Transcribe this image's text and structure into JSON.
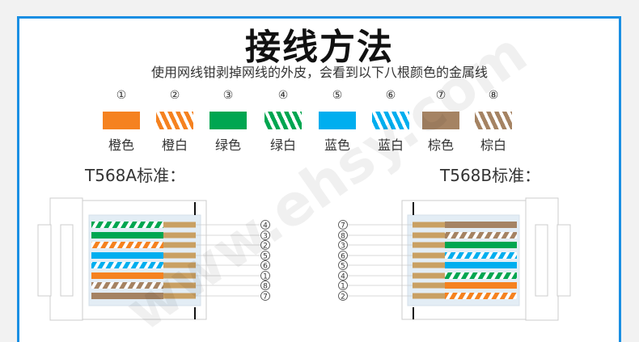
{
  "title": "接线方法",
  "subtitle": "使用网线钳剥掉网线的外皮，会看到以下八根颜色的金属线",
  "watermark": "www.ehsy.com",
  "colors": {
    "orange": "#f58220",
    "green": "#00a651",
    "blue": "#00aeef",
    "brown": "#a58363",
    "contact": "#c9a063",
    "frame": "#1a8fe3"
  },
  "legend": [
    {
      "num": "①",
      "label": "橙色",
      "color": "orange",
      "striped": false
    },
    {
      "num": "②",
      "label": "橙白",
      "color": "orange",
      "striped": true
    },
    {
      "num": "③",
      "label": "绿色",
      "color": "green",
      "striped": false
    },
    {
      "num": "④",
      "label": "绿白",
      "color": "green",
      "striped": true
    },
    {
      "num": "⑤",
      "label": "蓝色",
      "color": "blue",
      "striped": false
    },
    {
      "num": "⑥",
      "label": "蓝白",
      "color": "blue",
      "striped": true
    },
    {
      "num": "⑦",
      "label": "棕色",
      "color": "brown",
      "striped": false
    },
    {
      "num": "⑧",
      "label": "棕白",
      "color": "brown",
      "striped": true
    }
  ],
  "t568a": {
    "label": "T568A标准：",
    "order": [
      4,
      3,
      2,
      5,
      6,
      1,
      8,
      7
    ]
  },
  "t568b": {
    "label": "T568B标准：",
    "order": [
      7,
      8,
      3,
      6,
      5,
      4,
      1,
      2
    ]
  }
}
